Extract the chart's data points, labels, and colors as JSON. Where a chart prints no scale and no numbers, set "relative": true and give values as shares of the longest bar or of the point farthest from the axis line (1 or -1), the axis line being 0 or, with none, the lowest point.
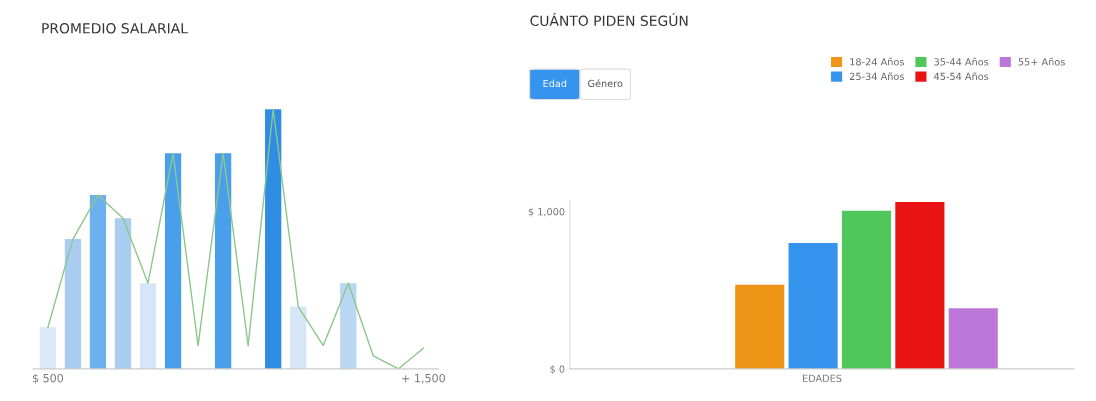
{
  "chart_data": [
    {
      "type": "bar",
      "title": "PROMEDIO SALARIAL",
      "relative": true,
      "categories": [
        "$ 500",
        null,
        null,
        null,
        null,
        null,
        null,
        null,
        null,
        null,
        null,
        null,
        null,
        null,
        null,
        "+ 1,500"
      ],
      "series": [
        {
          "type": "bar",
          "values": [
            0.16,
            0.5,
            0.67,
            0.58,
            0.33,
            0.83,
            0,
            0.83,
            0,
            1.0,
            0.24,
            0,
            0.33,
            0,
            0,
            0
          ],
          "colors": [
            "#dbe9f8",
            "#a9cdf0",
            "#6db0ee",
            "#a9cdf0",
            "#d6e6f7",
            "#4a9fea",
            "#d6e6f7",
            "#4a9fea",
            "#d6e6f7",
            "#2f8de4",
            "#d6e6f7",
            "#d6e6f7",
            "#b9d6f3",
            "#d6e6f7",
            "#d6e6f7",
            "#d6e6f7"
          ]
        },
        {
          "type": "line",
          "color": "#8cc78c",
          "values": [
            0.16,
            0.5,
            0.67,
            0.58,
            0.33,
            0.83,
            0.09,
            0.83,
            0.09,
            1.0,
            0.24,
            0.09,
            0.33,
            0.05,
            0.0,
            0.08
          ]
        }
      ],
      "grid": false
    },
    {
      "type": "bar",
      "title": "CUÁNTO PIDEN SEGÚN",
      "xlabel": "EDADES",
      "categories": [
        null
      ],
      "series": [
        {
          "name": "18-24 Años",
          "color": "#ee9517",
          "values": [
            535
          ]
        },
        {
          "name": "25-34 Años",
          "color": "#3595ee",
          "values": [
            800
          ]
        },
        {
          "name": "35-44 Años",
          "color": "#4fc75c",
          "values": [
            1005
          ]
        },
        {
          "name": "45-54 Años",
          "color": "#ea1313",
          "values": [
            1060
          ]
        },
        {
          "name": "55+ Años",
          "color": "#bd77d9",
          "values": [
            386
          ]
        }
      ],
      "ylim": [
        0,
        1070
      ],
      "yticks": [
        {
          "value": 0,
          "label": "$ 0"
        },
        {
          "value": 1000,
          "label": "$ 1,000"
        }
      ],
      "annotations": [
        "Edad",
        "Género"
      ],
      "grid": false,
      "legend": "top right"
    }
  ]
}
